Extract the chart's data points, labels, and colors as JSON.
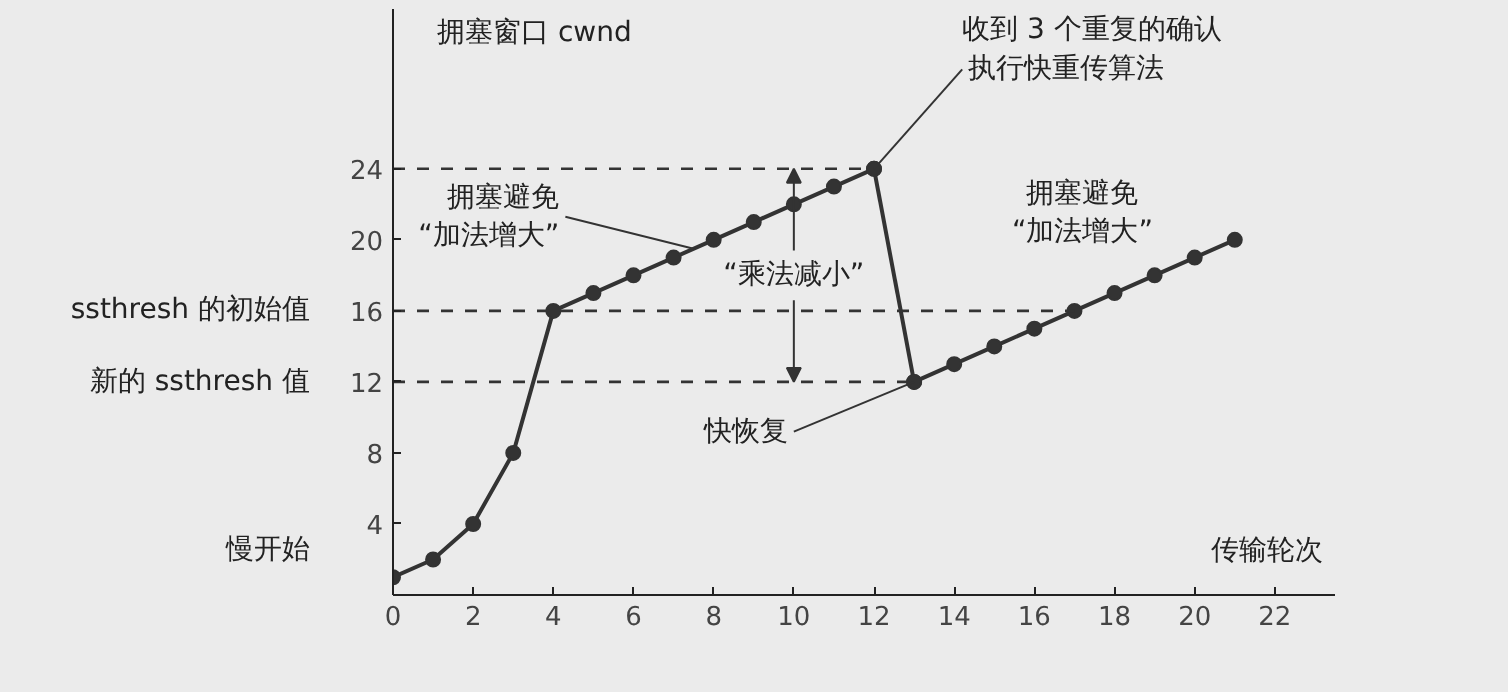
{
  "chart_data": {
    "type": "line",
    "xlabel": "传输轮次",
    "ylabel": "拥塞窗口 cwnd",
    "series": [
      {
        "color": "#333333",
        "x": [
          0,
          1,
          2,
          3,
          4,
          5,
          6,
          7,
          8,
          9,
          10,
          11,
          12
        ],
        "values": [
          1,
          2,
          4,
          8,
          16,
          17,
          18,
          19,
          20,
          21,
          22,
          23,
          24
        ]
      },
      {
        "color": "#333333",
        "x": [
          12,
          13
        ],
        "values": [
          24,
          12
        ]
      },
      {
        "color": "#333333",
        "x": [
          13,
          14,
          15,
          16,
          17,
          18,
          19,
          20,
          21
        ],
        "values": [
          12,
          13,
          14,
          15,
          16,
          17,
          18,
          19,
          20
        ]
      }
    ],
    "xlim": [
      0,
      23.5
    ],
    "ylim": [
      0,
      33
    ],
    "xticks": [
      0,
      2,
      4,
      6,
      8,
      10,
      12,
      14,
      16,
      18,
      20,
      22
    ],
    "yticks": [
      4,
      8,
      12,
      16,
      20,
      24
    ],
    "ref_lines": [
      {
        "axis": "y",
        "value": 24,
        "line_style": "dashed"
      },
      {
        "axis": "y",
        "value": 16,
        "label": "ssthresh 的初始值",
        "line_style": "dashed"
      },
      {
        "axis": "y",
        "value": 12,
        "label": "新的 ssthresh 值",
        "line_style": "dashed"
      }
    ],
    "annotations": [
      "慢开始",
      {
        "text": "拥塞避免\n“加法增大”",
        "x": 7.5,
        "y": 19.5
      },
      "收到 3 个重复的确认",
      {
        "text": "执行快重传算法",
        "x": 12,
        "y": 24
      },
      {
        "text": "“乘法减小”",
        "x": 10,
        "y": 24
      },
      {
        "text": "快恢复",
        "x": 13,
        "y": 12
      },
      "拥塞避免\n“加法增大”"
    ],
    "marker": "circle",
    "line_style": "solid",
    "grid": false
  }
}
